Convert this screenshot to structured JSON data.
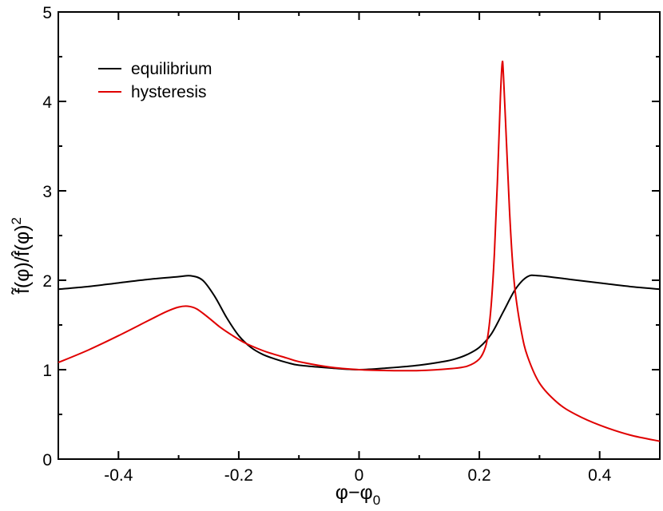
{
  "chart_data": {
    "type": "line",
    "title": "",
    "xlabel": "φ−φ",
    "xlabel_sub": "0",
    "ylabel": "f̃(φ)/f̂(φ)",
    "ylabel_sup": "2",
    "xlim": [
      -0.5,
      0.5
    ],
    "ylim": [
      0,
      5
    ],
    "x_ticks": [
      -0.4,
      -0.2,
      0,
      0.2,
      0.4
    ],
    "x_tick_labels": [
      "-0.4",
      "-0.2",
      "0",
      "0.2",
      "0.4"
    ],
    "y_ticks": [
      0,
      1,
      2,
      3,
      4,
      5
    ],
    "y_tick_labels": [
      "0",
      "1",
      "2",
      "3",
      "4",
      "5"
    ],
    "grid": false,
    "legend_position": "top-left",
    "series": [
      {
        "name": "equilibrium",
        "color": "#000000",
        "x": [
          -0.5,
          -0.45,
          -0.4,
          -0.35,
          -0.3,
          -0.28,
          -0.26,
          -0.24,
          -0.22,
          -0.2,
          -0.18,
          -0.16,
          -0.14,
          -0.12,
          -0.1,
          -0.05,
          0,
          0.05,
          0.1,
          0.14,
          0.16,
          0.18,
          0.2,
          0.22,
          0.24,
          0.26,
          0.28,
          0.3,
          0.35,
          0.4,
          0.45,
          0.5
        ],
        "y": [
          1.9,
          1.93,
          1.97,
          2.01,
          2.04,
          2.05,
          2.0,
          1.82,
          1.58,
          1.38,
          1.25,
          1.17,
          1.12,
          1.08,
          1.05,
          1.02,
          1.0,
          1.02,
          1.05,
          1.09,
          1.12,
          1.17,
          1.25,
          1.4,
          1.65,
          1.9,
          2.04,
          2.05,
          2.01,
          1.97,
          1.93,
          1.9
        ]
      },
      {
        "name": "hysteresis",
        "color": "#e00000",
        "x": [
          -0.5,
          -0.45,
          -0.4,
          -0.35,
          -0.32,
          -0.3,
          -0.285,
          -0.27,
          -0.25,
          -0.23,
          -0.21,
          -0.19,
          -0.17,
          -0.15,
          -0.12,
          -0.1,
          -0.05,
          0,
          0.05,
          0.1,
          0.15,
          0.18,
          0.2,
          0.21,
          0.215,
          0.22,
          0.225,
          0.23,
          0.235,
          0.238,
          0.24,
          0.245,
          0.25,
          0.255,
          0.26,
          0.27,
          0.28,
          0.3,
          0.33,
          0.36,
          0.4,
          0.45,
          0.5
        ],
        "y": [
          1.08,
          1.22,
          1.38,
          1.55,
          1.65,
          1.7,
          1.71,
          1.68,
          1.58,
          1.47,
          1.38,
          1.3,
          1.24,
          1.19,
          1.13,
          1.09,
          1.03,
          1.0,
          0.99,
          0.99,
          1.01,
          1.04,
          1.12,
          1.25,
          1.42,
          1.75,
          2.3,
          3.1,
          4.05,
          4.43,
          4.3,
          3.55,
          2.8,
          2.22,
          1.85,
          1.42,
          1.15,
          0.85,
          0.63,
          0.5,
          0.38,
          0.27,
          0.2
        ]
      }
    ]
  }
}
